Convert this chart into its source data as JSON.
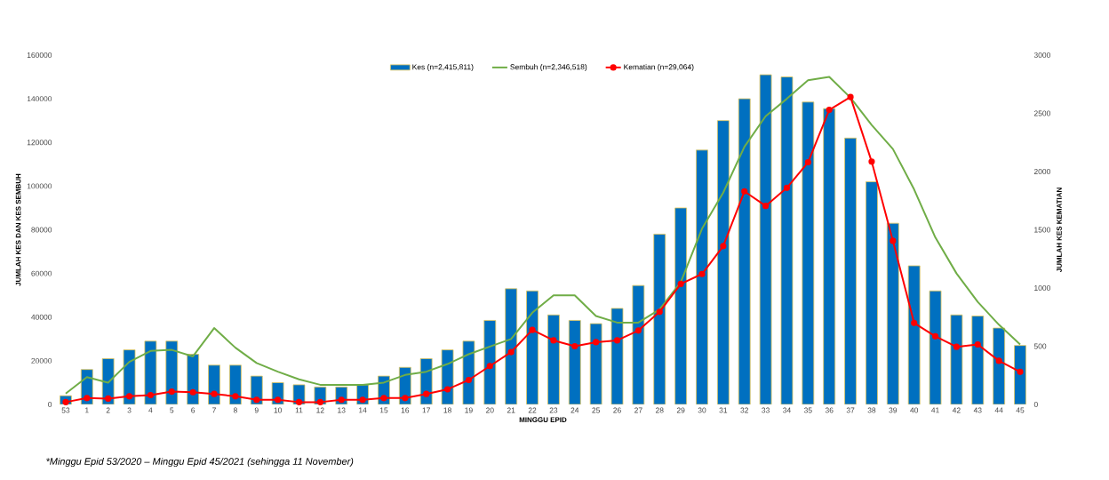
{
  "chart_data": {
    "type": "bar",
    "categories": [
      "53",
      "1",
      "2",
      "3",
      "4",
      "5",
      "6",
      "7",
      "8",
      "9",
      "10",
      "11",
      "12",
      "13",
      "14",
      "15",
      "16",
      "17",
      "18",
      "19",
      "20",
      "21",
      "22",
      "23",
      "24",
      "25",
      "26",
      "27",
      "28",
      "29",
      "30",
      "31",
      "32",
      "33",
      "34",
      "35",
      "36",
      "37",
      "38",
      "39",
      "40",
      "41",
      "42",
      "43",
      "44",
      "45"
    ],
    "series": [
      {
        "name": "Kes (n=2,415,811)",
        "color": "#0070c0",
        "values": [
          4000,
          16000,
          21000,
          25000,
          29000,
          29000,
          23000,
          18000,
          18000,
          13000,
          10000,
          9000,
          8000,
          8000,
          9000,
          13000,
          17000,
          21000,
          25000,
          29000,
          38500,
          53000,
          52000,
          41000,
          38500,
          37000,
          44000,
          54500,
          78000,
          90000,
          116500,
          130000,
          140000,
          151000,
          150000,
          138500,
          135500,
          122000,
          102000,
          83000,
          63500,
          52000,
          41000,
          40500,
          35000,
          27000
        ]
      },
      {
        "name": "Sembuh (n=2,346,518)",
        "type": "line",
        "color": "#70ad47",
        "marker": "none",
        "values": [
          5000,
          12500,
          10000,
          19500,
          24500,
          25000,
          22000,
          35000,
          26000,
          19000,
          15000,
          11500,
          9000,
          9000,
          9000,
          10000,
          13500,
          15000,
          18500,
          23000,
          26500,
          30000,
          42000,
          50000,
          50000,
          40500,
          37500,
          37500,
          43500,
          56000,
          80500,
          97000,
          118000,
          132000,
          140000,
          148500,
          150000,
          140500,
          128000,
          117000,
          98500,
          76500,
          60000,
          47000,
          36500,
          27500
        ]
      },
      {
        "name": "Kematian (n=29,064)",
        "type": "line",
        "axis": "y2",
        "color": "#ff0000",
        "marker": "circle",
        "values": [
          20,
          55,
          50,
          70,
          80,
          110,
          105,
          90,
          70,
          40,
          40,
          20,
          20,
          40,
          40,
          55,
          55,
          90,
          130,
          210,
          330,
          450,
          640,
          550,
          500,
          535,
          550,
          635,
          795,
          1035,
          1120,
          1360,
          1830,
          1705,
          1860,
          2080,
          2530,
          2640,
          2085,
          1405,
          700,
          585,
          495,
          515,
          375,
          280
        ]
      }
    ],
    "xlabel": "MINGGU EPID",
    "ylabel": "JUMLAH KES  DAN KES SEMBUH",
    "y2label": "JUMLAH KES KEMATIAN",
    "ylim": [
      0,
      160000
    ],
    "yticks": [
      0,
      20000,
      40000,
      60000,
      80000,
      100000,
      120000,
      140000,
      160000
    ],
    "y2lim": [
      0,
      3000
    ],
    "y2ticks": [
      0,
      500,
      1000,
      1500,
      2000,
      2500,
      3000
    ],
    "legend": "top",
    "grid": false,
    "annotations": [
      "*Minggu Epid 53/2020 – Minggu Epid 45/2021 (sehingga 11 November)"
    ]
  }
}
